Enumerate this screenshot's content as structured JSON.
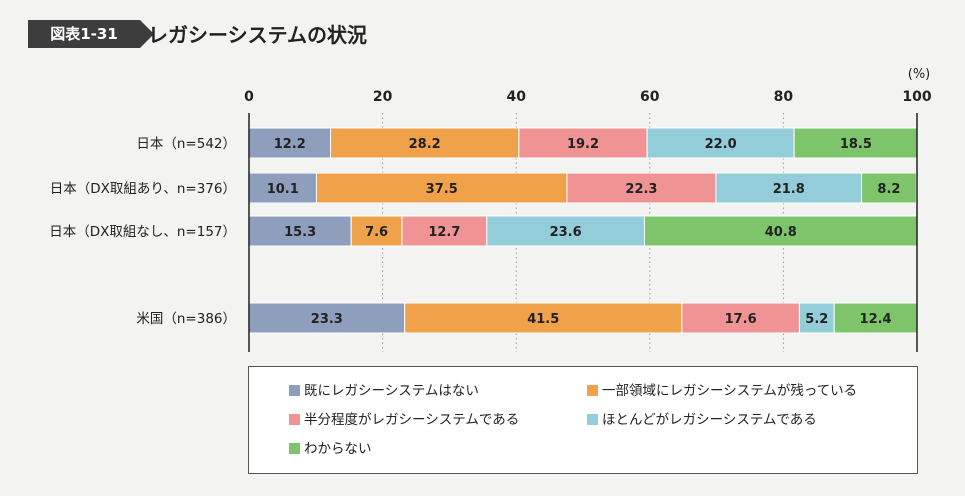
{
  "figure": {
    "tag": "図表1-31",
    "title": "レガシーシステムの状況",
    "tag_color": "#3d3d3d"
  },
  "chart_data": {
    "type": "bar",
    "orientation": "horizontal",
    "stacked": true,
    "unit_label": "(%)",
    "xlim": [
      0,
      100
    ],
    "ticks": [
      0,
      20,
      40,
      60,
      80,
      100
    ],
    "grid": "dotted vertical",
    "legend_position": "bottom",
    "categories": [
      "日本（n=542）",
      "日本（DX取組あり、n=376）",
      "日本（DX取組なし、n=157）",
      "米国（n=386）"
    ],
    "series": [
      {
        "name": "既にレガシーシステムはない",
        "color": "#8d9fbd",
        "values": [
          12.2,
          10.1,
          15.3,
          23.3
        ]
      },
      {
        "name": "一部領域にレガシーシステムが残っている",
        "color": "#f0a24b",
        "values": [
          28.2,
          37.5,
          7.6,
          41.5
        ]
      },
      {
        "name": "半分程度がレガシーシステムである",
        "color": "#f09394",
        "values": [
          19.2,
          22.3,
          12.7,
          17.6
        ]
      },
      {
        "name": "ほとんどがレガシーシステムである",
        "color": "#93cdd9",
        "values": [
          22.0,
          21.8,
          23.6,
          5.2
        ]
      },
      {
        "name": "わからない",
        "color": "#7ec46a",
        "values": [
          18.5,
          8.2,
          40.8,
          12.4
        ]
      }
    ]
  }
}
